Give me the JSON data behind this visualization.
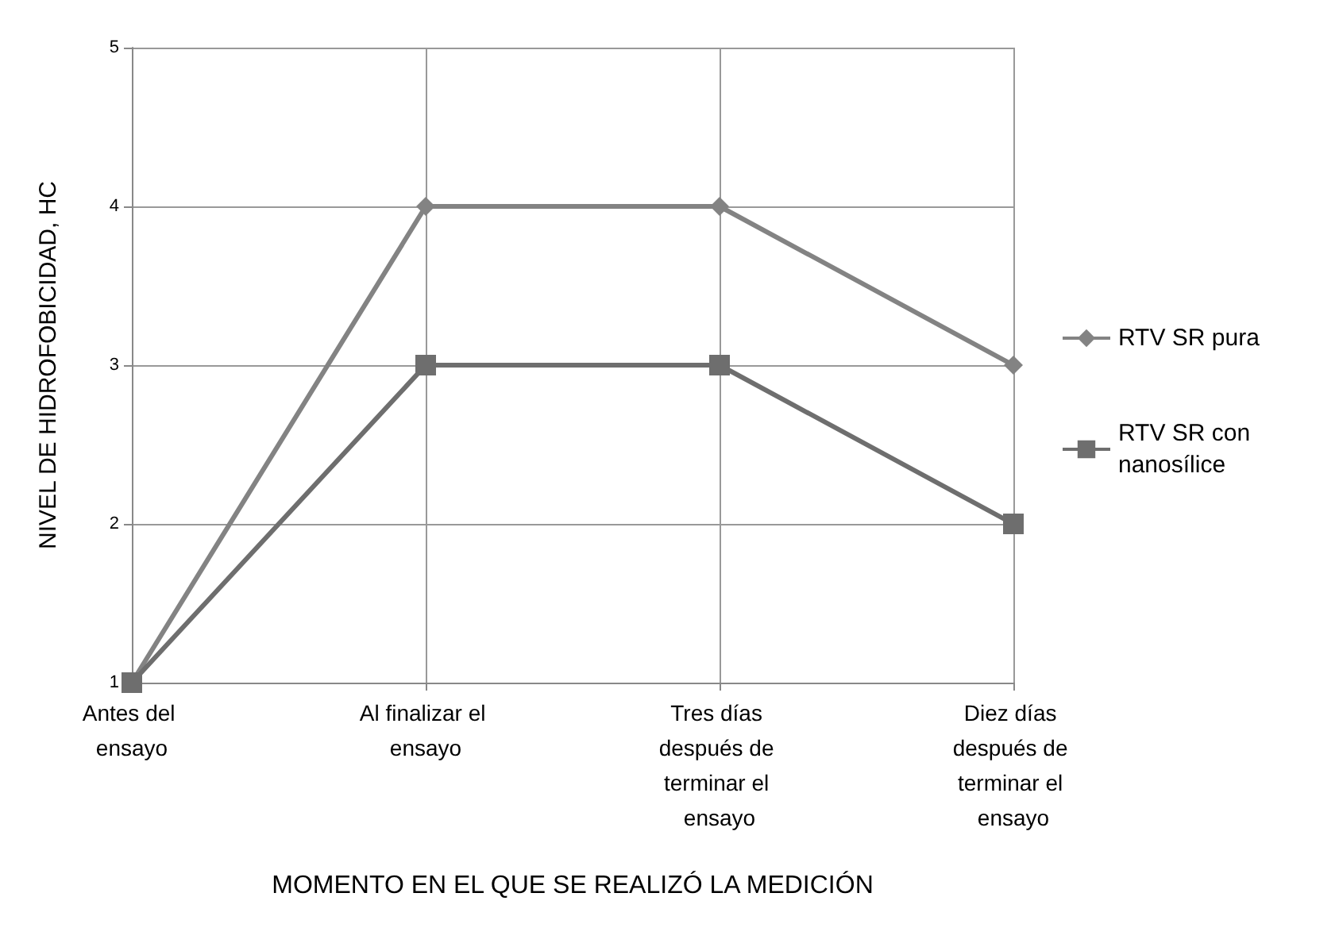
{
  "chart_data": {
    "type": "line",
    "xlabel": "MOMENTO EN EL QUE SE REALIZÓ LA MEDICIÓN",
    "ylabel": "NIVEL DE HIDROFOBICIDAD, HC",
    "categories": [
      "Antes del ensayo",
      "Al finalizar el ensayo",
      "Tres días después de terminar el ensayo",
      "Diez días después de terminar el ensayo"
    ],
    "series": [
      {
        "name": "RTV SR pura",
        "color": "#838383",
        "marker": "diamond",
        "values": [
          1,
          4,
          4,
          3
        ]
      },
      {
        "name": "RTV SR con nanosílice",
        "color": "#6e6e6e",
        "marker": "square",
        "values": [
          1,
          3,
          3,
          2
        ]
      }
    ],
    "ylim": [
      1,
      5
    ],
    "yticks": [
      1,
      2,
      3,
      4,
      5
    ],
    "grid": true,
    "legend": "right",
    "line_style": "solid"
  }
}
